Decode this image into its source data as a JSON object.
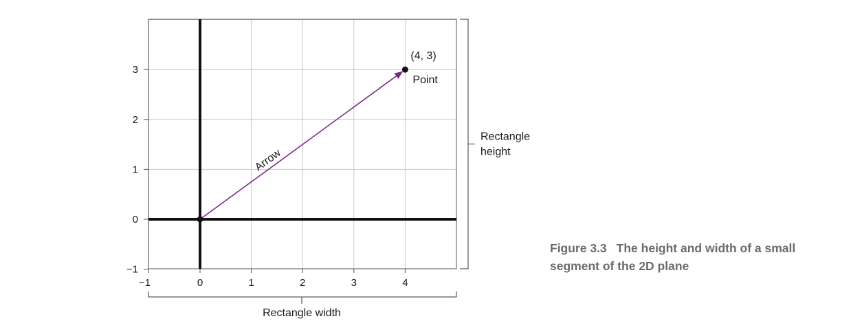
{
  "figure": {
    "caption_label": "Figure 3.3",
    "caption_text": "The height and width of a small segment of the 2D plane"
  },
  "chart_data": {
    "type": "diagram",
    "xlim": [
      -1,
      5
    ],
    "ylim": [
      -1,
      4
    ],
    "x_ticks": [
      {
        "value": -1,
        "label": "−1"
      },
      {
        "value": 0,
        "label": "0"
      },
      {
        "value": 1,
        "label": "1"
      },
      {
        "value": 2,
        "label": "2"
      },
      {
        "value": 3,
        "label": "3"
      },
      {
        "value": 4,
        "label": "4"
      }
    ],
    "y_ticks": [
      {
        "value": -1,
        "label": "−1"
      },
      {
        "value": 0,
        "label": "0"
      },
      {
        "value": 1,
        "label": "1"
      },
      {
        "value": 2,
        "label": "2"
      },
      {
        "value": 3,
        "label": "3"
      }
    ],
    "grid": true,
    "points": [
      {
        "x": 0,
        "y": 0
      },
      {
        "x": 4,
        "y": 3,
        "coord_label": "(4, 3)",
        "name_label": "Point"
      }
    ],
    "arrow": {
      "from": [
        0,
        0
      ],
      "to": [
        4,
        3
      ],
      "label": "Arrow",
      "color": "#7a2a86"
    },
    "width_bracket_label": "Rectangle width",
    "height_bracket_label": "Rectangle height"
  }
}
